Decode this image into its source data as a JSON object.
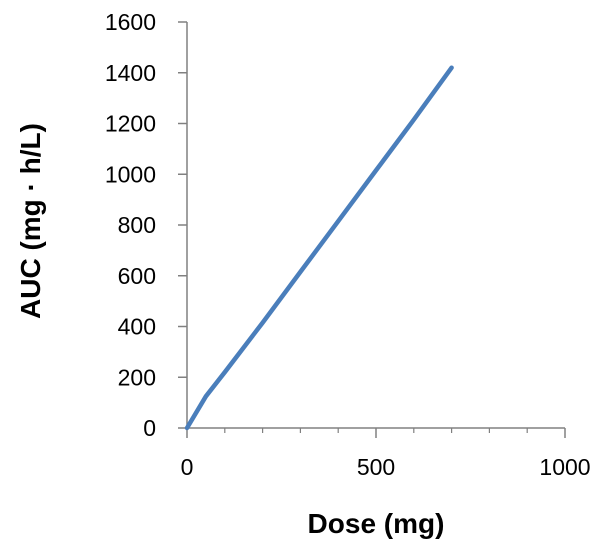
{
  "chart_data": {
    "type": "line",
    "title": "",
    "xlabel": "Dose (mg)",
    "ylabel": "AUC (mg · h/L)",
    "xlim": [
      0,
      1000
    ],
    "ylim": [
      0,
      1600
    ],
    "x_ticks": [
      0,
      500,
      1000
    ],
    "x_minor_ticks": [
      100,
      200,
      300,
      400,
      600,
      700,
      800,
      900
    ],
    "y_ticks": [
      0,
      200,
      400,
      600,
      800,
      1000,
      1200,
      1400,
      1600
    ],
    "grid": false,
    "legend": "none",
    "series": [
      {
        "color": "#4a7ebb",
        "x": [
          0,
          50,
          100,
          200,
          300,
          400,
          500,
          600,
          700
        ],
        "y": [
          0,
          125,
          220,
          415,
          615,
          815,
          1015,
          1215,
          1420
        ]
      }
    ]
  },
  "colors": {
    "line": "#4a7ebb",
    "axis": "#808080",
    "text": "#000000"
  }
}
